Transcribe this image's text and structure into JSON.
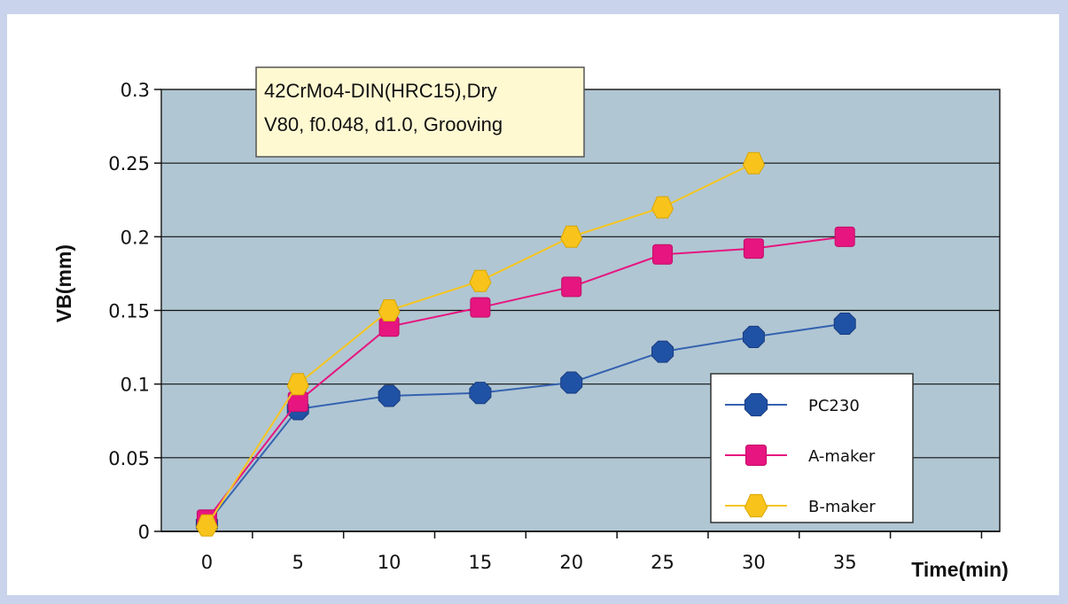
{
  "chart_data": {
    "type": "line",
    "x": [
      0,
      5,
      10,
      15,
      20,
      25,
      30,
      35
    ],
    "xticks": [
      "0",
      "5",
      "10",
      "15",
      "20",
      "25",
      "30",
      "35"
    ],
    "xlabel": "Time(min)",
    "ylabel": "VB(mm)",
    "xlim": [
      -2.5,
      43.5
    ],
    "ylim": [
      0,
      0.3
    ],
    "yticks": [
      "0",
      "0.05",
      "0.1",
      "0.15",
      "0.2",
      "0.25",
      "0.3"
    ],
    "ytick_values": [
      0,
      0.05,
      0.1,
      0.15,
      0.2,
      0.25,
      0.3
    ],
    "grid": true,
    "legend_position": "bottom-right",
    "annotation": [
      "42CrMo4-DIN(HRC15),Dry",
      "V80, f0.048, d1.0, Grooving"
    ],
    "plot_background": "#b0c6d3",
    "series": [
      {
        "name": "PC230",
        "marker": "octagon",
        "color": "#1f52a5",
        "line_color": "#3562b0",
        "values": [
          0.005,
          0.083,
          0.092,
          0.094,
          0.101,
          0.122,
          0.132,
          0.141
        ]
      },
      {
        "name": "A-maker",
        "marker": "square",
        "color": "#e6157f",
        "line_color": "#e6157f",
        "values": [
          0.008,
          0.088,
          0.139,
          0.152,
          0.166,
          0.188,
          0.192,
          0.2
        ]
      },
      {
        "name": "B-maker",
        "marker": "triangle",
        "color": "#f8c41c",
        "line_color": "#f6c51f",
        "values": [
          0.004,
          0.1,
          0.15,
          0.17,
          0.2,
          0.22,
          0.25,
          null
        ]
      }
    ]
  }
}
